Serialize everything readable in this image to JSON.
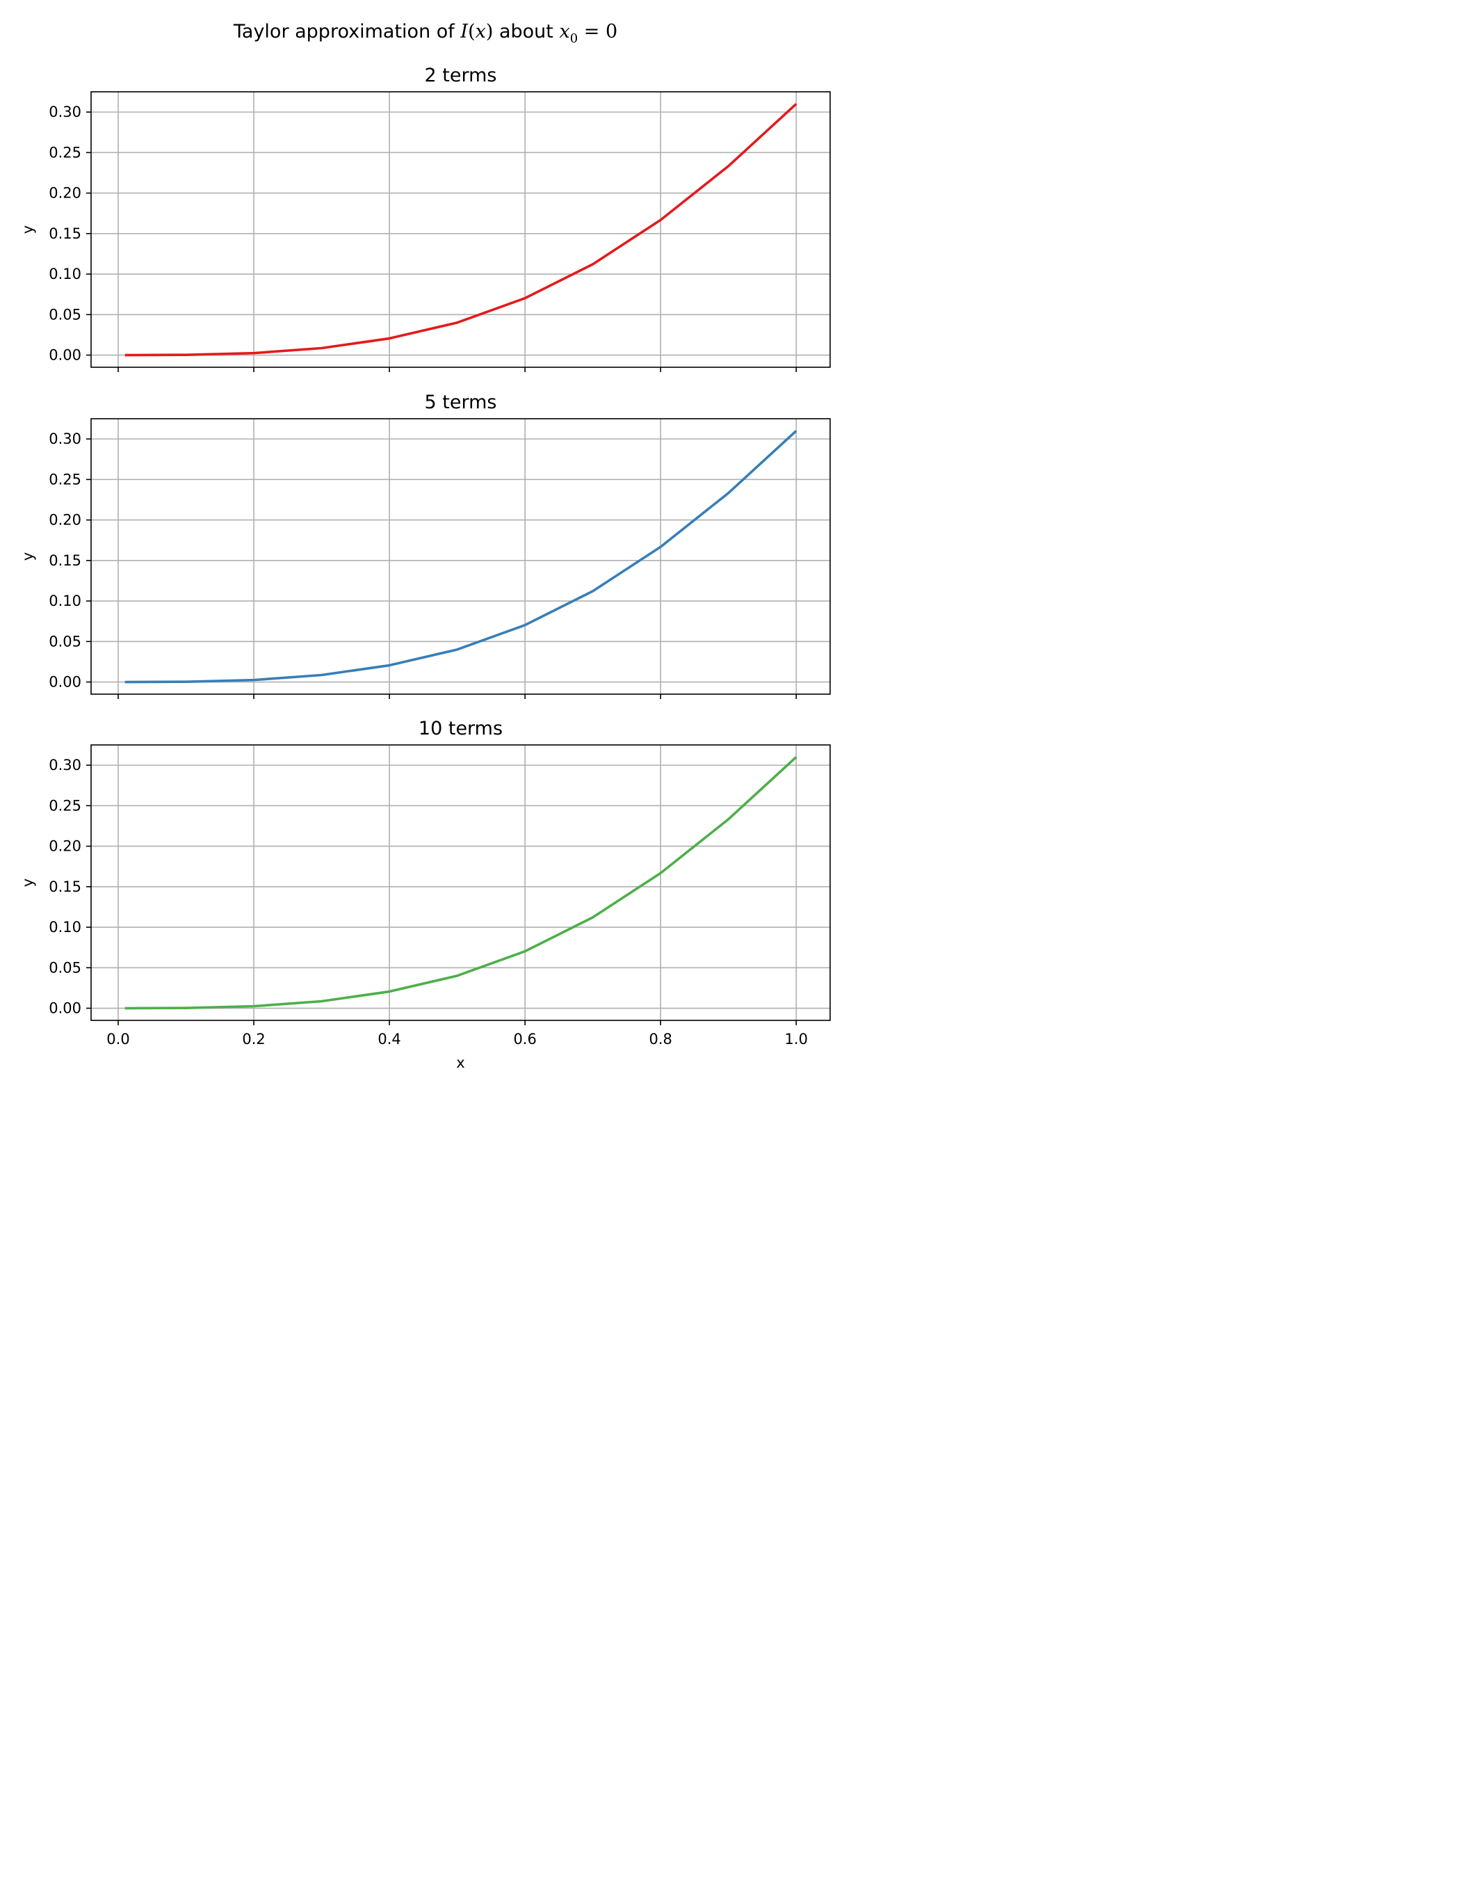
{
  "figure": {
    "suptitle_prefix": "Taylor approximation of ",
    "suptitle_fn": "I",
    "suptitle_arg_open": "(",
    "suptitle_arg": "x",
    "suptitle_arg_close": ")",
    "suptitle_mid": " about ",
    "suptitle_var": "x",
    "suptitle_sub": "0",
    "suptitle_eq": " = 0"
  },
  "chart_data": [
    {
      "type": "line",
      "title": "2 terms",
      "xlabel": "",
      "ylabel": "y",
      "xlim": [
        -0.04,
        1.05
      ],
      "ylim": [
        -0.015,
        0.325
      ],
      "xticks": [
        0.0,
        0.2,
        0.4,
        0.6,
        0.8,
        1.0
      ],
      "xtick_labels_visible": false,
      "yticks": [
        0.0,
        0.05,
        0.1,
        0.15,
        0.2,
        0.25,
        0.3
      ],
      "ytick_labels": [
        "0.00",
        "0.05",
        "0.10",
        "0.15",
        "0.20",
        "0.25",
        "0.30"
      ],
      "grid": true,
      "series": [
        {
          "color": "#e41a1c",
          "x": [
            0.01,
            0.1,
            0.2,
            0.3,
            0.4,
            0.5,
            0.6,
            0.7,
            0.8,
            0.9,
            1.0
          ],
          "y": [
            0.0,
            0.0003,
            0.0025,
            0.0086,
            0.0206,
            0.0401,
            0.0703,
            0.1122,
            0.1668,
            0.2333,
            0.31
          ]
        }
      ]
    },
    {
      "type": "line",
      "title": "5 terms",
      "xlabel": "",
      "ylabel": "y",
      "xlim": [
        -0.04,
        1.05
      ],
      "ylim": [
        -0.015,
        0.325
      ],
      "xticks": [
        0.0,
        0.2,
        0.4,
        0.6,
        0.8,
        1.0
      ],
      "xtick_labels_visible": false,
      "yticks": [
        0.0,
        0.05,
        0.1,
        0.15,
        0.2,
        0.25,
        0.3
      ],
      "ytick_labels": [
        "0.00",
        "0.05",
        "0.10",
        "0.15",
        "0.20",
        "0.25",
        "0.30"
      ],
      "grid": true,
      "series": [
        {
          "color": "#377eb8",
          "x": [
            0.01,
            0.1,
            0.2,
            0.3,
            0.4,
            0.5,
            0.6,
            0.7,
            0.8,
            0.9,
            1.0
          ],
          "y": [
            0.0,
            0.0003,
            0.0025,
            0.0086,
            0.0206,
            0.0401,
            0.0703,
            0.1122,
            0.1668,
            0.2333,
            0.31
          ]
        }
      ]
    },
    {
      "type": "line",
      "title": "10 terms",
      "xlabel": "x",
      "ylabel": "y",
      "xlim": [
        -0.04,
        1.05
      ],
      "ylim": [
        -0.015,
        0.325
      ],
      "xticks": [
        0.0,
        0.2,
        0.4,
        0.6,
        0.8,
        1.0
      ],
      "xtick_labels": [
        "0.0",
        "0.2",
        "0.4",
        "0.6",
        "0.8",
        "1.0"
      ],
      "xtick_labels_visible": true,
      "yticks": [
        0.0,
        0.05,
        0.1,
        0.15,
        0.2,
        0.25,
        0.3
      ],
      "ytick_labels": [
        "0.00",
        "0.05",
        "0.10",
        "0.15",
        "0.20",
        "0.25",
        "0.30"
      ],
      "grid": true,
      "series": [
        {
          "color": "#4daf4a",
          "x": [
            0.01,
            0.1,
            0.2,
            0.3,
            0.4,
            0.5,
            0.6,
            0.7,
            0.8,
            0.9,
            1.0
          ],
          "y": [
            0.0,
            0.0003,
            0.0025,
            0.0086,
            0.0206,
            0.0401,
            0.0703,
            0.1122,
            0.1668,
            0.2333,
            0.31
          ]
        }
      ]
    }
  ]
}
